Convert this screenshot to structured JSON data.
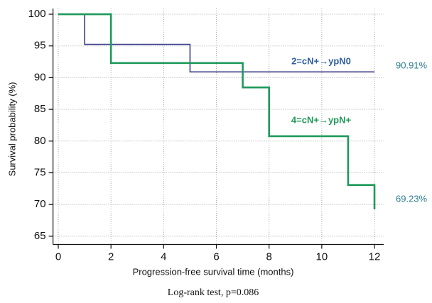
{
  "chart_data": {
    "type": "step",
    "y_label": "Survival probability (%)",
    "x_label": "Progression-free survival time (months)",
    "footnote": "Log-rank test, p=0.086",
    "xlim": [
      -0.2,
      12.35
    ],
    "ylim": [
      63.7,
      100.9
    ],
    "xticks": [
      0,
      2,
      4,
      6,
      8,
      10,
      12
    ],
    "yticks": [
      65,
      70,
      75,
      80,
      85,
      90,
      95,
      100
    ],
    "grid": true,
    "step": "post",
    "series": [
      {
        "name": "2=cN+→ypN0",
        "color": "#3b3f8c",
        "label_color": "#2e5fa0",
        "value_label_color": "#2a7d8f",
        "x": [
          0,
          1,
          5,
          12
        ],
        "values": [
          100,
          95.24,
          90.91,
          90.91
        ],
        "value_labels": [
          null,
          null,
          null,
          "90.91%"
        ]
      },
      {
        "name": "4=cN+→ypN+",
        "color": "#1e9a5a",
        "label_color": "#1e9a5a",
        "value_label_color": "#2a7d8f",
        "x": [
          0,
          2,
          7,
          8,
          11,
          12,
          12
        ],
        "values": [
          100,
          92.31,
          88.46,
          80.77,
          73.08,
          73.08,
          69.23
        ],
        "value_labels": [
          null,
          null,
          null,
          null,
          null,
          null,
          "69.23%"
        ]
      }
    ]
  }
}
